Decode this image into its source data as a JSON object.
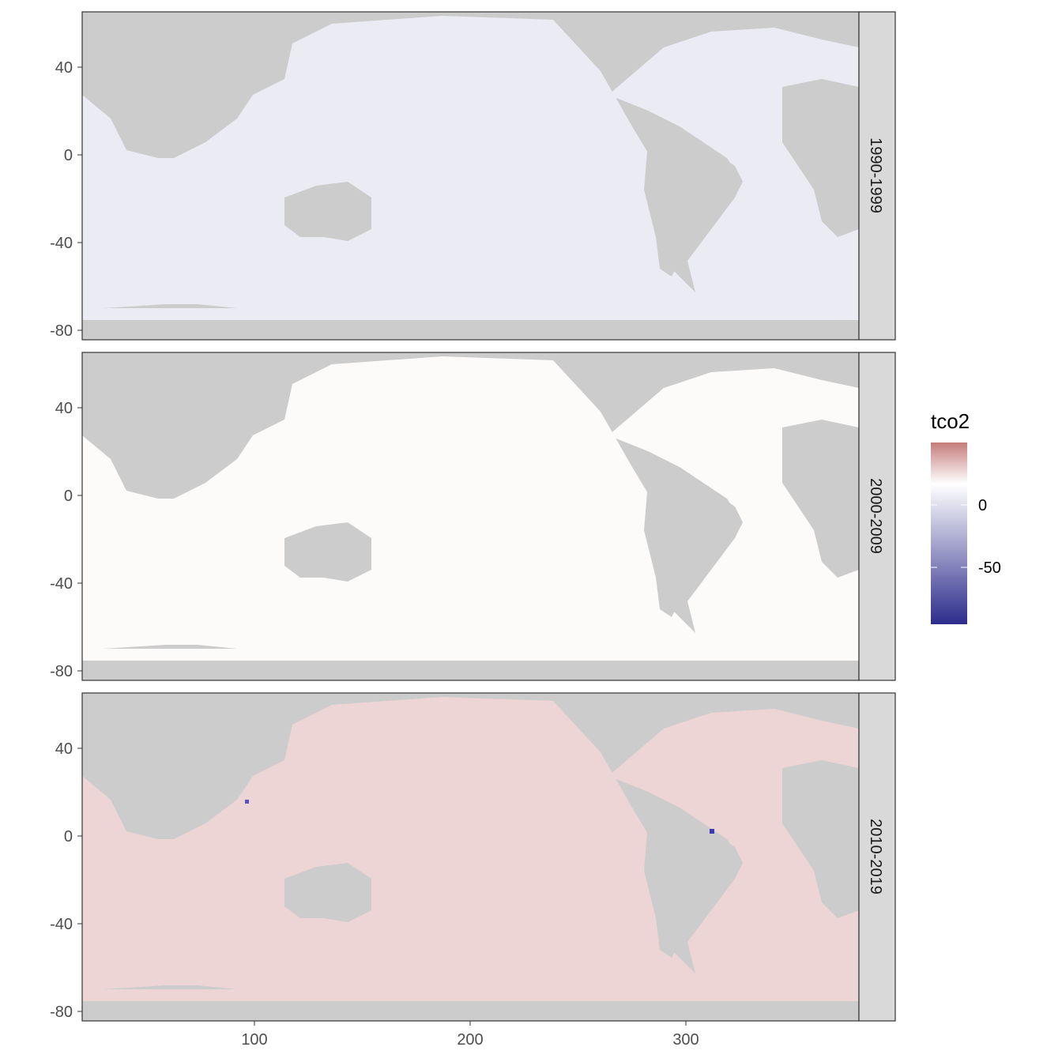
{
  "chart_data": {
    "type": "heatmap",
    "variable": "tco2",
    "x_ticks": [
      100,
      200,
      300
    ],
    "y_ticks": [
      40,
      0,
      -40,
      -80
    ],
    "xlim": [
      20,
      380
    ],
    "ylim": [
      -85,
      65
    ],
    "facets": [
      {
        "label": "1990-1999",
        "tone": "blue",
        "mean_value": -8
      },
      {
        "label": "2000-2009",
        "tone": "neutral",
        "mean_value": 1
      },
      {
        "label": "2010-2019",
        "tone": "red",
        "mean_value": 8
      }
    ],
    "legend": {
      "title": "tco2",
      "ticks": [
        0,
        -50
      ],
      "range": [
        -85,
        25
      ],
      "colors": {
        "high": "#c47c7a",
        "mid": "#ffffff",
        "low": "#2c2c8c"
      }
    },
    "colors": {
      "land": "#cccccc",
      "panel_border": "#333333",
      "strip_fill": "#d9d9d9"
    }
  }
}
